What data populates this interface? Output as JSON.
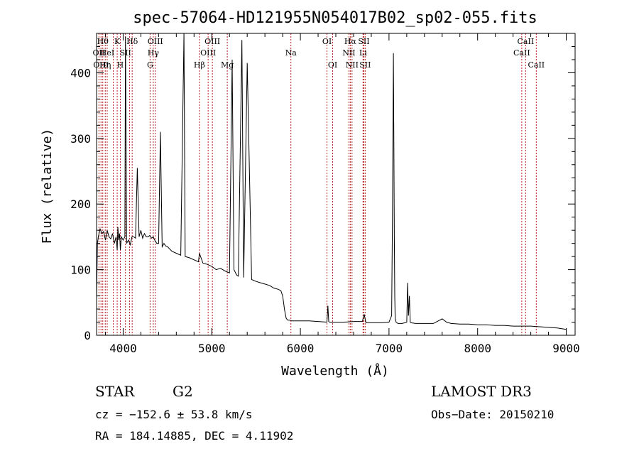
{
  "chart_data": {
    "type": "line",
    "title": "spec-57064-HD121955N054017B02_sp02-055.fits",
    "xlabel": "Wavelength (Å)",
    "ylabel": "Flux (relative)",
    "xlim": [
      3700,
      9100
    ],
    "ylim": [
      0,
      460
    ],
    "xticks": [
      4000,
      5000,
      6000,
      7000,
      8000,
      9000
    ],
    "yticks": [
      0,
      100,
      200,
      300,
      400
    ],
    "grid": false,
    "line_color": "#000000",
    "marker_color": "#b22222",
    "series": [
      {
        "x": [
          3700,
          3710,
          3720,
          3740,
          3760,
          3780,
          3800,
          3820,
          3840,
          3860,
          3880,
          3900,
          3920,
          3933,
          3940,
          3950,
          3960,
          3968,
          3980,
          4000,
          4020,
          4026,
          4040,
          4060,
          4080,
          4100,
          4120,
          4140,
          4160,
          4180,
          4200,
          4220,
          4240,
          4260,
          4280,
          4300,
          4320,
          4340,
          4360,
          4380,
          4400,
          4420,
          4440,
          4460,
          4480,
          4500,
          4550,
          4600,
          4650,
          4686,
          4700,
          4750,
          4800,
          4850,
          4861,
          4900,
          4950,
          5000,
          5050,
          5100,
          5150,
          5200,
          5230,
          5250,
          5280,
          5300,
          5340,
          5360,
          5400,
          5450,
          5500,
          5550,
          5600,
          5650,
          5700,
          5750,
          5780,
          5800,
          5810,
          5820,
          5830,
          5840,
          5850,
          5860,
          5880,
          5900,
          6000,
          6100,
          6200,
          6300,
          6310,
          6320,
          6330,
          6400,
          6500,
          6600,
          6700,
          6720,
          6740,
          6780,
          6800,
          6900,
          7000,
          7030,
          7040,
          7050,
          7060,
          7065,
          7070,
          7080,
          7100,
          7150,
          7200,
          7210,
          7220,
          7230,
          7240,
          7250,
          7300,
          7400,
          7500,
          7600,
          7650,
          7700,
          7800,
          7900,
          8000,
          8100,
          8200,
          8300,
          8400,
          8500,
          8600,
          8700,
          8800,
          8900,
          9000
        ],
        "y": [
          55,
          140,
          150,
          162,
          155,
          158,
          145,
          160,
          150,
          147,
          155,
          140,
          150,
          130,
          165,
          145,
          155,
          130,
          150,
          145,
          150,
          455,
          140,
          145,
          138,
          150,
          150,
          148,
          255,
          150,
          160,
          148,
          155,
          150,
          150,
          152,
          148,
          150,
          144,
          140,
          140,
          310,
          135,
          140,
          136,
          135,
          128,
          125,
          122,
          460,
          120,
          118,
          115,
          112,
          125,
          110,
          108,
          105,
          100,
          102,
          98,
          95,
          420,
          100,
          92,
          90,
          450,
          88,
          415,
          85,
          82,
          80,
          78,
          76,
          72,
          70,
          68,
          60,
          50,
          40,
          32,
          26,
          24,
          23,
          23,
          22,
          22,
          22,
          21,
          20,
          45,
          21,
          20,
          20,
          20,
          21,
          21,
          32,
          19,
          19,
          19,
          19,
          20,
          30,
          200,
          430,
          150,
          60,
          25,
          20,
          18,
          18,
          20,
          80,
          30,
          60,
          20,
          19,
          18,
          18,
          18,
          25,
          20,
          18,
          17,
          17,
          16,
          16,
          15,
          15,
          14,
          14,
          14,
          13,
          12,
          11,
          9
        ]
      }
    ],
    "lines": [
      {
        "x": 3727,
        "label": "OII",
        "row": 2
      },
      {
        "x": 3750,
        "label": "OIII",
        "row": 3
      },
      {
        "x": 3770,
        "label": "Hθ",
        "row": 1
      },
      {
        "x": 3798,
        "label": "Hη",
        "row": 3
      },
      {
        "x": 3820,
        "label": "HeI",
        "row": 2
      },
      {
        "x": 3889,
        "label": "",
        "row": 0
      },
      {
        "x": 3933,
        "label": "K",
        "row": 1
      },
      {
        "x": 3968,
        "label": "H",
        "row": 3
      },
      {
        "x": 4026,
        "label": "SII",
        "row": 2
      },
      {
        "x": 4072,
        "label": "",
        "row": 0
      },
      {
        "x": 4102,
        "label": "Hδ",
        "row": 1
      },
      {
        "x": 4304,
        "label": "G",
        "row": 3
      },
      {
        "x": 4340,
        "label": "Hγ",
        "row": 2
      },
      {
        "x": 4363,
        "label": "OIII",
        "row": 1
      },
      {
        "x": 4861,
        "label": "Hβ",
        "row": 3
      },
      {
        "x": 4959,
        "label": "OIII",
        "row": 2
      },
      {
        "x": 5007,
        "label": "OIII",
        "row": 1
      },
      {
        "x": 5175,
        "label": "Mg",
        "row": 3
      },
      {
        "x": 5893,
        "label": "Na",
        "row": 2
      },
      {
        "x": 6300,
        "label": "OI",
        "row": 1
      },
      {
        "x": 6364,
        "label": "OI",
        "row": 3
      },
      {
        "x": 6548,
        "label": "NII",
        "row": 2
      },
      {
        "x": 6563,
        "label": "Hα",
        "row": 1
      },
      {
        "x": 6583,
        "label": "NII",
        "row": 3
      },
      {
        "x": 6707,
        "label": "Li",
        "row": 2
      },
      {
        "x": 6716,
        "label": "SII",
        "row": 1
      },
      {
        "x": 6731,
        "label": "SII",
        "row": 3
      },
      {
        "x": 8498,
        "label": "CaII",
        "row": 2
      },
      {
        "x": 8542,
        "label": "CaII",
        "row": 1
      },
      {
        "x": 8662,
        "label": "CaII",
        "row": 3
      }
    ]
  },
  "info": {
    "class": "STAR",
    "subclass": "G2",
    "survey": "LAMOST DR3",
    "cz": "cz = −152.6 ± 53.8 km/s",
    "obs_date": "Obs−Date: 20150210",
    "coords": "RA = 184.14885, DEC =   4.11902"
  }
}
